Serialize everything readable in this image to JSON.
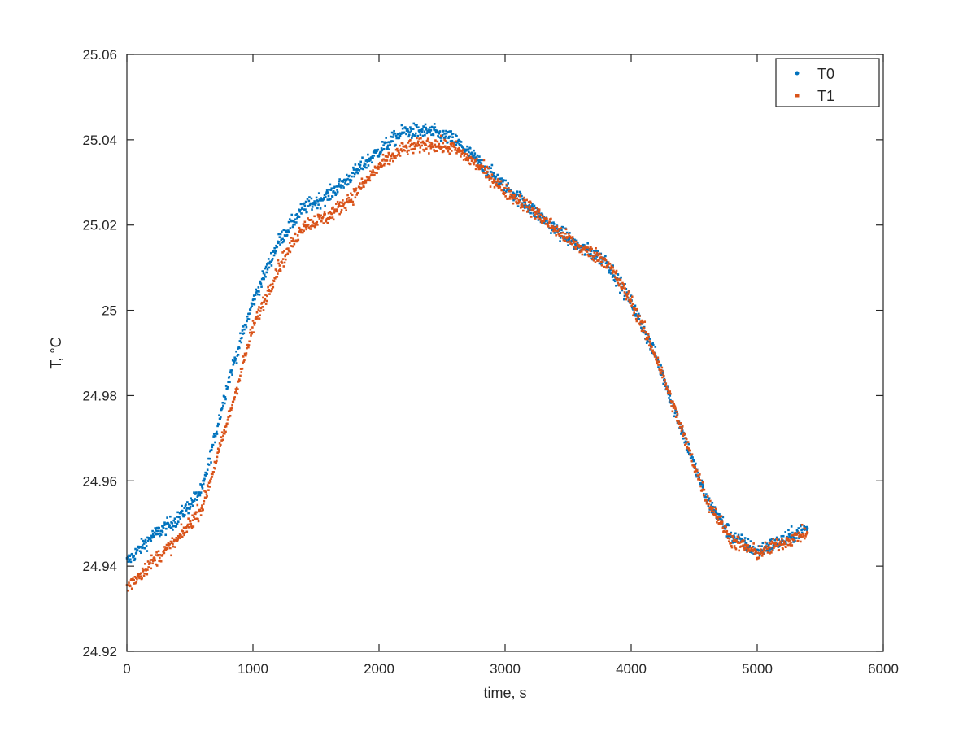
{
  "chart_data": {
    "type": "scatter",
    "title": "",
    "xlabel": "time, s",
    "ylabel": "T, °C",
    "xlim": [
      0,
      6000
    ],
    "ylim": [
      24.92,
      25.06
    ],
    "xticks": [
      "0",
      "1000",
      "2000",
      "3000",
      "4000",
      "5000",
      "6000"
    ],
    "yticks": [
      "24.92",
      "24.94",
      "24.96",
      "24.98",
      "25",
      "25.02",
      "25.04",
      "25.06"
    ],
    "grid": false,
    "legend_position": "top-right",
    "x": [
      0,
      200,
      400,
      600,
      800,
      1000,
      1200,
      1400,
      1600,
      1800,
      2000,
      2200,
      2400,
      2600,
      2800,
      3000,
      3200,
      3400,
      3600,
      3800,
      4000,
      4200,
      4400,
      4600,
      4800,
      5000,
      5200,
      5400
    ],
    "series": [
      {
        "name": "T0",
        "color": "#0072BD",
        "values": [
          24.941,
          24.947,
          24.951,
          24.958,
          24.983,
          25.002,
          25.016,
          25.024,
          25.027,
          25.032,
          25.0375,
          25.042,
          25.042,
          25.04,
          25.0346,
          25.029,
          25.024,
          25.019,
          25.0146,
          25.0117,
          25.002,
          24.989,
          24.972,
          24.9555,
          24.947,
          24.9435,
          24.946,
          24.949
        ]
      },
      {
        "name": "T1",
        "color": "#D95319",
        "values": [
          24.935,
          24.941,
          24.946,
          24.954,
          24.974,
          24.996,
          25.01,
          25.02,
          25.022,
          25.027,
          25.0337,
          25.038,
          25.039,
          25.038,
          25.0337,
          25.028,
          25.024,
          25.019,
          25.0146,
          25.0117,
          25.002,
          24.989,
          24.972,
          24.9555,
          24.946,
          24.943,
          24.9455,
          24.948
        ]
      }
    ]
  }
}
